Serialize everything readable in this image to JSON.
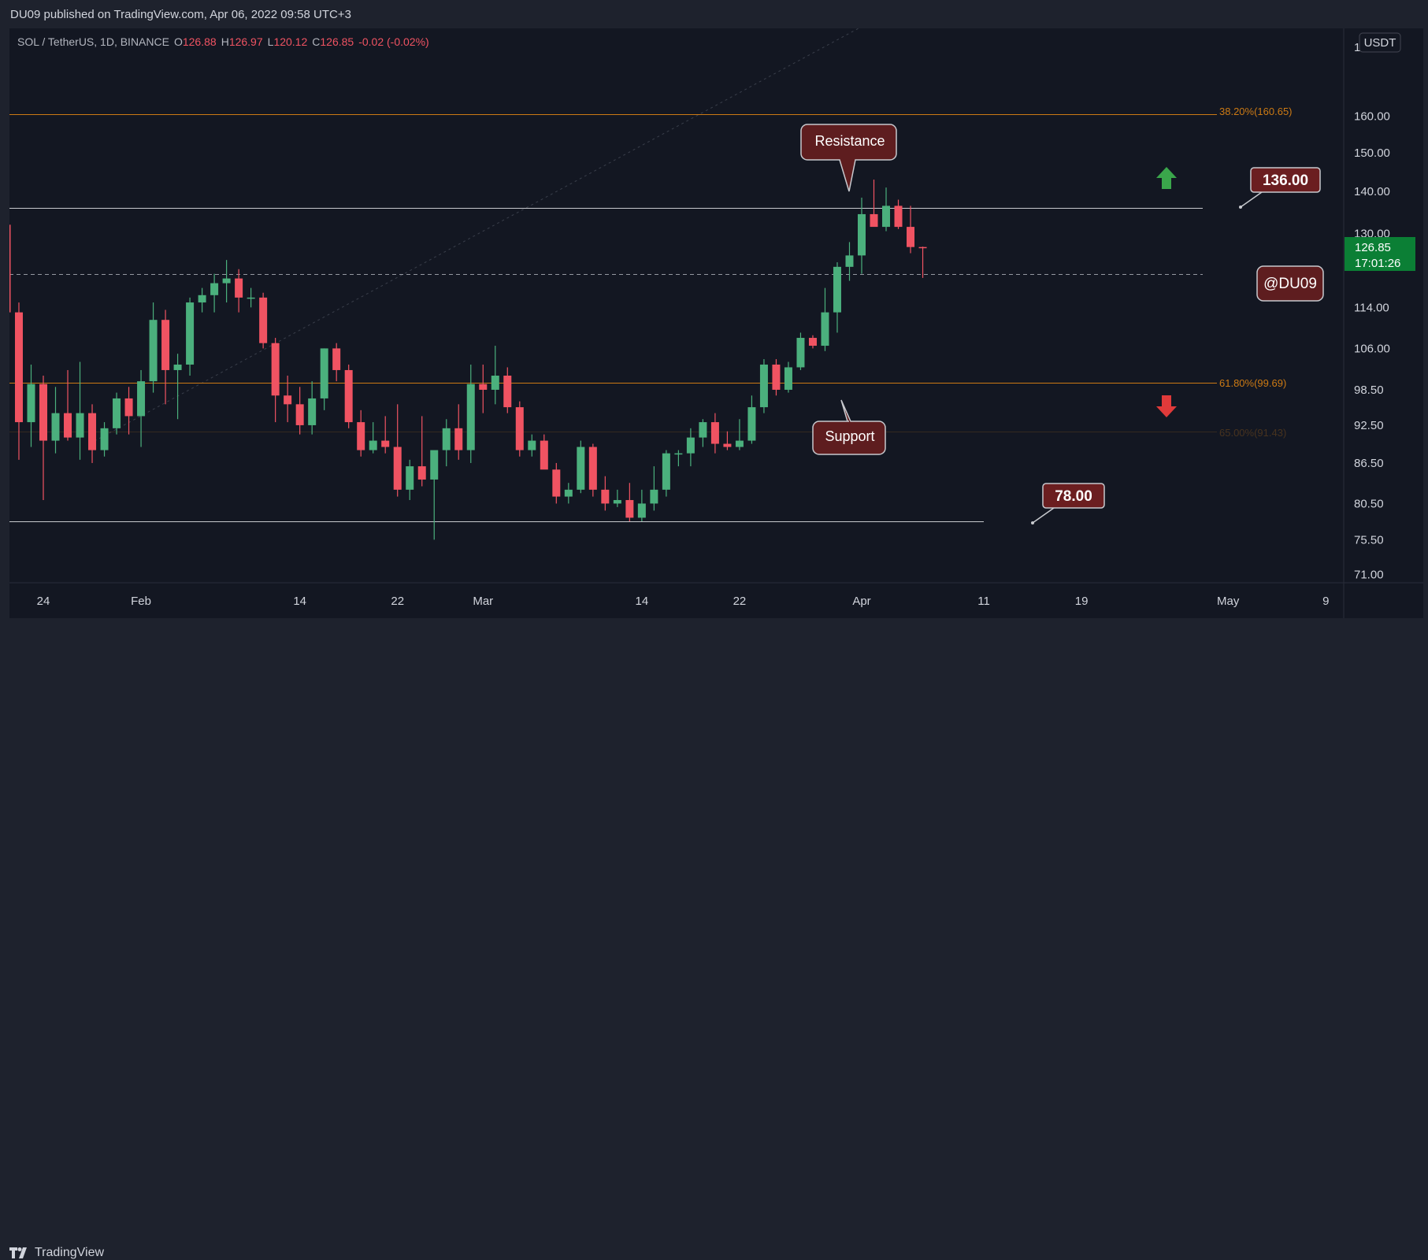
{
  "header": {
    "published": "DU09 published on TradingView.com, Apr 06, 2022 09:58 UTC+3"
  },
  "legend": {
    "symbol": "SOL / TetherUS, 1D, BINANCE",
    "o_label": "O",
    "o": "126.88",
    "h_label": "H",
    "h": "126.97",
    "l_label": "L",
    "l": "120.12",
    "c_label": "C",
    "c": "126.85",
    "change": "-0.02 (-0.02%)"
  },
  "price_axis": {
    "currency": "USDT",
    "top_partial": "1",
    "current_price": "126.85",
    "countdown": "17:01:26"
  },
  "annotations": {
    "resistance": "Resistance",
    "support": "Support",
    "level_136": "136.00",
    "level_78": "78.00",
    "author": "@DU09",
    "fib_382": "38.20%(160.65)",
    "fib_618": "61.80%(99.69)",
    "fib_65": "65.00%(91.43)"
  },
  "footer": {
    "brand": "TradingView"
  },
  "colors": {
    "background": "#131722",
    "up": "#4bb07d",
    "down": "#f05362",
    "fib": "#cc7a14",
    "label_bg": "#5e1d1f",
    "arrow_up": "#3aa64b",
    "arrow_down": "#e03a3a",
    "price_tag": "#0b7f35"
  },
  "chart_data": {
    "type": "candlestick",
    "title": "SOL / TetherUS, 1D, BINANCE",
    "y_scale": "log",
    "ylim": [
      68.5,
      190
    ],
    "y_ticks": [
      71.0,
      75.5,
      80.5,
      86.5,
      92.5,
      98.5,
      106.0,
      114.0,
      130.0,
      140.0,
      150.0,
      160.0
    ],
    "x_ticks": [
      "24",
      "Feb",
      "14",
      "22",
      "Mar",
      "14",
      "22",
      "Apr",
      "11",
      "19",
      "May",
      "9"
    ],
    "x_tick_dates": [
      "2022-01-24",
      "2022-02-01",
      "2022-02-14",
      "2022-02-22",
      "2022-03-01",
      "2022-03-14",
      "2022-03-22",
      "2022-04-01",
      "2022-04-11",
      "2022-04-19",
      "2022-05-01",
      "2022-05-09"
    ],
    "horizontal_levels": [
      {
        "label": "38.20%(160.65)",
        "value": 160.65,
        "style": "fib"
      },
      {
        "label": "136.00",
        "value": 136.0,
        "style": "resistance"
      },
      {
        "label": "",
        "value": 121.0,
        "style": "dashed"
      },
      {
        "label": "61.80%(99.69)",
        "value": 99.69,
        "style": "fib"
      },
      {
        "label": "65.00%(91.43)",
        "value": 91.43,
        "style": "fib-faded"
      },
      {
        "label": "78.00",
        "value": 78.0,
        "style": "support"
      }
    ],
    "candles": [
      {
        "date": "2022-01-21",
        "o": 132.0,
        "h": 150.0,
        "l": 109.0,
        "c": 113.0
      },
      {
        "date": "2022-01-22",
        "o": 113.0,
        "h": 115.0,
        "l": 87.0,
        "c": 93.0
      },
      {
        "date": "2022-01-23",
        "o": 93.0,
        "h": 103.0,
        "l": 89.0,
        "c": 99.5
      },
      {
        "date": "2022-01-24",
        "o": 99.5,
        "h": 101.0,
        "l": 81.0,
        "c": 90.0
      },
      {
        "date": "2022-01-25",
        "o": 90.0,
        "h": 99.0,
        "l": 88.0,
        "c": 94.5
      },
      {
        "date": "2022-01-26",
        "o": 94.5,
        "h": 102.0,
        "l": 90.0,
        "c": 90.5
      },
      {
        "date": "2022-01-27",
        "o": 90.5,
        "h": 103.5,
        "l": 87.0,
        "c": 94.5
      },
      {
        "date": "2022-01-28",
        "o": 94.5,
        "h": 96.0,
        "l": 86.5,
        "c": 88.5
      },
      {
        "date": "2022-01-29",
        "o": 88.5,
        "h": 93.0,
        "l": 87.5,
        "c": 92.0
      },
      {
        "date": "2022-01-30",
        "o": 92.0,
        "h": 98.0,
        "l": 91.0,
        "c": 97.0
      },
      {
        "date": "2022-01-31",
        "o": 97.0,
        "h": 99.0,
        "l": 91.0,
        "c": 94.0
      },
      {
        "date": "2022-02-01",
        "o": 94.0,
        "h": 102.0,
        "l": 89.0,
        "c": 100.0
      },
      {
        "date": "2022-02-02",
        "o": 100.0,
        "h": 115.0,
        "l": 98.0,
        "c": 111.5
      },
      {
        "date": "2022-02-03",
        "o": 111.5,
        "h": 113.5,
        "l": 96.0,
        "c": 102.0
      },
      {
        "date": "2022-02-04",
        "o": 102.0,
        "h": 105.0,
        "l": 93.5,
        "c": 103.0
      },
      {
        "date": "2022-02-05",
        "o": 103.0,
        "h": 116.0,
        "l": 101.0,
        "c": 115.0
      },
      {
        "date": "2022-02-06",
        "o": 115.0,
        "h": 118.0,
        "l": 113.0,
        "c": 116.5
      },
      {
        "date": "2022-02-07",
        "o": 116.5,
        "h": 121.0,
        "l": 113.0,
        "c": 119.0
      },
      {
        "date": "2022-02-08",
        "o": 119.0,
        "h": 124.0,
        "l": 115.0,
        "c": 120.0
      },
      {
        "date": "2022-02-09",
        "o": 120.0,
        "h": 122.0,
        "l": 113.0,
        "c": 116.0
      },
      {
        "date": "2022-02-10",
        "o": 116.0,
        "h": 118.0,
        "l": 114.0,
        "c": 116.0
      },
      {
        "date": "2022-02-11",
        "o": 116.0,
        "h": 117.0,
        "l": 106.0,
        "c": 107.0
      },
      {
        "date": "2022-02-12",
        "o": 107.0,
        "h": 108.0,
        "l": 93.0,
        "c": 97.5
      },
      {
        "date": "2022-02-13",
        "o": 97.5,
        "h": 101.0,
        "l": 93.0,
        "c": 96.0
      },
      {
        "date": "2022-02-14",
        "o": 96.0,
        "h": 99.0,
        "l": 91.0,
        "c": 92.5
      },
      {
        "date": "2022-02-15",
        "o": 92.5,
        "h": 100.0,
        "l": 91.0,
        "c": 97.0
      },
      {
        "date": "2022-02-16",
        "o": 97.0,
        "h": 106.0,
        "l": 95.0,
        "c": 106.0
      },
      {
        "date": "2022-02-17",
        "o": 106.0,
        "h": 107.0,
        "l": 100.0,
        "c": 102.0
      },
      {
        "date": "2022-02-18",
        "o": 102.0,
        "h": 103.0,
        "l": 92.0,
        "c": 93.0
      },
      {
        "date": "2022-02-19",
        "o": 93.0,
        "h": 95.0,
        "l": 87.5,
        "c": 88.5
      },
      {
        "date": "2022-02-20",
        "o": 88.5,
        "h": 93.0,
        "l": 88.0,
        "c": 90.0
      },
      {
        "date": "2022-02-21",
        "o": 90.0,
        "h": 94.0,
        "l": 88.0,
        "c": 89.0
      },
      {
        "date": "2022-02-22",
        "o": 89.0,
        "h": 96.0,
        "l": 81.5,
        "c": 82.5
      },
      {
        "date": "2022-02-23",
        "o": 82.5,
        "h": 87.0,
        "l": 81.0,
        "c": 86.0
      },
      {
        "date": "2022-02-24",
        "o": 86.0,
        "h": 94.0,
        "l": 83.0,
        "c": 84.0
      },
      {
        "date": "2022-02-25",
        "o": 84.0,
        "h": 88.0,
        "l": 75.5,
        "c": 88.5
      },
      {
        "date": "2022-02-26",
        "o": 88.5,
        "h": 93.5,
        "l": 86.0,
        "c": 92.0
      },
      {
        "date": "2022-02-27",
        "o": 92.0,
        "h": 96.0,
        "l": 87.0,
        "c": 88.5
      },
      {
        "date": "2022-02-28",
        "o": 88.5,
        "h": 103.0,
        "l": 86.5,
        "c": 99.5
      },
      {
        "date": "2022-03-01",
        "o": 99.5,
        "h": 103.0,
        "l": 94.5,
        "c": 98.5
      },
      {
        "date": "2022-03-02",
        "o": 98.5,
        "h": 106.5,
        "l": 96.0,
        "c": 101.0
      },
      {
        "date": "2022-03-03",
        "o": 101.0,
        "h": 102.5,
        "l": 94.5,
        "c": 95.5
      },
      {
        "date": "2022-03-04",
        "o": 95.5,
        "h": 96.5,
        "l": 87.5,
        "c": 88.5
      },
      {
        "date": "2022-03-05",
        "o": 88.5,
        "h": 91.0,
        "l": 87.5,
        "c": 90.0
      },
      {
        "date": "2022-03-06",
        "o": 90.0,
        "h": 91.0,
        "l": 86.0,
        "c": 85.5
      },
      {
        "date": "2022-03-07",
        "o": 85.5,
        "h": 86.5,
        "l": 80.5,
        "c": 81.5
      },
      {
        "date": "2022-03-08",
        "o": 81.5,
        "h": 83.5,
        "l": 80.5,
        "c": 82.5
      },
      {
        "date": "2022-03-09",
        "o": 82.5,
        "h": 90.0,
        "l": 82.0,
        "c": 89.0
      },
      {
        "date": "2022-03-10",
        "o": 89.0,
        "h": 89.5,
        "l": 81.5,
        "c": 82.5
      },
      {
        "date": "2022-03-11",
        "o": 82.5,
        "h": 84.5,
        "l": 79.5,
        "c": 80.5
      },
      {
        "date": "2022-03-12",
        "o": 80.5,
        "h": 82.5,
        "l": 80.0,
        "c": 81.0
      },
      {
        "date": "2022-03-13",
        "o": 81.0,
        "h": 83.5,
        "l": 78.0,
        "c": 78.5
      },
      {
        "date": "2022-03-14",
        "o": 78.5,
        "h": 82.5,
        "l": 78.0,
        "c": 80.5
      },
      {
        "date": "2022-03-15",
        "o": 80.5,
        "h": 86.0,
        "l": 79.5,
        "c": 82.5
      },
      {
        "date": "2022-03-16",
        "o": 82.5,
        "h": 88.5,
        "l": 81.5,
        "c": 88.0
      },
      {
        "date": "2022-03-17",
        "o": 88.0,
        "h": 88.5,
        "l": 86.0,
        "c": 88.0
      },
      {
        "date": "2022-03-18",
        "o": 88.0,
        "h": 92.0,
        "l": 86.0,
        "c": 90.5
      },
      {
        "date": "2022-03-19",
        "o": 90.5,
        "h": 93.5,
        "l": 89.0,
        "c": 93.0
      },
      {
        "date": "2022-03-20",
        "o": 93.0,
        "h": 94.5,
        "l": 88.0,
        "c": 89.5
      },
      {
        "date": "2022-03-21",
        "o": 89.5,
        "h": 91.5,
        "l": 88.5,
        "c": 89.0
      },
      {
        "date": "2022-03-22",
        "o": 89.0,
        "h": 93.5,
        "l": 88.5,
        "c": 90.0
      },
      {
        "date": "2022-03-23",
        "o": 90.0,
        "h": 97.5,
        "l": 89.5,
        "c": 95.5
      },
      {
        "date": "2022-03-24",
        "o": 95.5,
        "h": 104.0,
        "l": 94.5,
        "c": 103.0
      },
      {
        "date": "2022-03-25",
        "o": 103.0,
        "h": 104.0,
        "l": 97.5,
        "c": 98.5
      },
      {
        "date": "2022-03-26",
        "o": 98.5,
        "h": 103.5,
        "l": 98.0,
        "c": 102.5
      },
      {
        "date": "2022-03-27",
        "o": 102.5,
        "h": 109.0,
        "l": 102.0,
        "c": 108.0
      },
      {
        "date": "2022-03-28",
        "o": 108.0,
        "h": 108.5,
        "l": 106.0,
        "c": 106.5
      },
      {
        "date": "2022-03-29",
        "o": 106.5,
        "h": 118.0,
        "l": 105.5,
        "c": 113.0
      },
      {
        "date": "2022-03-30",
        "o": 113.0,
        "h": 123.5,
        "l": 109.0,
        "c": 122.5
      },
      {
        "date": "2022-03-31",
        "o": 122.5,
        "h": 128.0,
        "l": 119.5,
        "c": 125.0
      },
      {
        "date": "2022-04-01",
        "o": 125.0,
        "h": 138.5,
        "l": 121.0,
        "c": 134.5
      },
      {
        "date": "2022-04-02",
        "o": 134.5,
        "h": 143.0,
        "l": 132.0,
        "c": 131.5
      },
      {
        "date": "2022-04-03",
        "o": 131.5,
        "h": 141.0,
        "l": 130.5,
        "c": 136.5
      },
      {
        "date": "2022-04-04",
        "o": 136.5,
        "h": 138.0,
        "l": 131.0,
        "c": 131.5
      },
      {
        "date": "2022-04-05",
        "o": 131.5,
        "h": 136.5,
        "l": 125.5,
        "c": 126.88
      },
      {
        "date": "2022-04-06",
        "o": 126.88,
        "h": 126.97,
        "l": 120.12,
        "c": 126.85
      }
    ]
  }
}
